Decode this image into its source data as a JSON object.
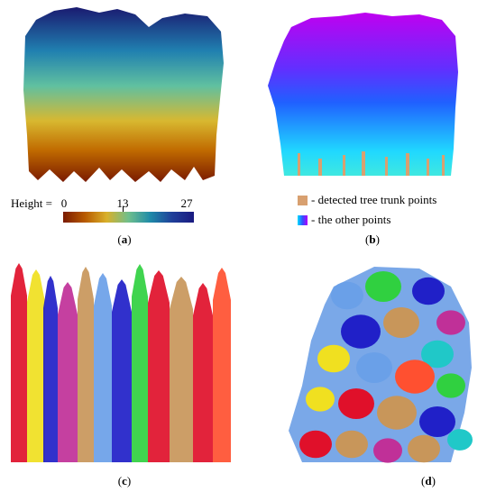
{
  "panels": {
    "a": {
      "label": "a"
    },
    "b": {
      "label": "b"
    },
    "c": {
      "label": "c"
    },
    "d": {
      "label": "d"
    }
  },
  "colorbar": {
    "prefix": "Height =",
    "ticks": [
      "0",
      "13",
      "27"
    ],
    "values": [
      0,
      13,
      27
    ],
    "min": 0,
    "max": 27
  },
  "legend": {
    "trunk": "- detected tree trunk points",
    "other": "- the other points"
  },
  "colors": {
    "trunk": "#d8a070",
    "segment_palette": [
      "#e0102a",
      "#2020c8",
      "#c8965a",
      "#6aa0e8",
      "#20c8c8",
      "#c03098",
      "#f0e020",
      "#30d040",
      "#9060e0",
      "#ff5030"
    ]
  }
}
